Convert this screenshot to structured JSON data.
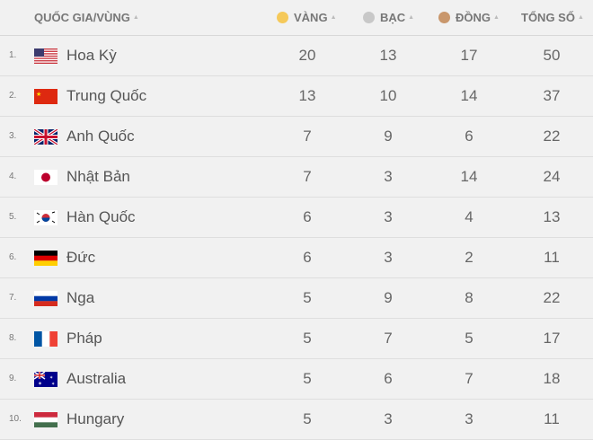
{
  "header": {
    "country": "QUỐC GIA/VÙNG",
    "gold": "VÀNG",
    "silver": "BẠC",
    "bronze": "ĐỒNG",
    "total": "TỔNG SỐ"
  },
  "colors": {
    "gold": "#f5c95a",
    "silver": "#c8c8c8",
    "bronze": "#c9976c"
  },
  "rows": [
    {
      "rank": "1.",
      "flag": "us-flag",
      "country": "Hoa Kỳ",
      "gold": "20",
      "silver": "13",
      "bronze": "17",
      "total": "50"
    },
    {
      "rank": "2.",
      "flag": "cn-flag",
      "country": "Trung Quốc",
      "gold": "13",
      "silver": "10",
      "bronze": "14",
      "total": "37"
    },
    {
      "rank": "3.",
      "flag": "gb-flag",
      "country": "Anh Quốc",
      "gold": "7",
      "silver": "9",
      "bronze": "6",
      "total": "22"
    },
    {
      "rank": "4.",
      "flag": "jp-flag",
      "country": "Nhật Bản",
      "gold": "7",
      "silver": "3",
      "bronze": "14",
      "total": "24"
    },
    {
      "rank": "5.",
      "flag": "kr-flag",
      "country": "Hàn Quốc",
      "gold": "6",
      "silver": "3",
      "bronze": "4",
      "total": "13"
    },
    {
      "rank": "6.",
      "flag": "de-flag",
      "country": "Đức",
      "gold": "6",
      "silver": "3",
      "bronze": "2",
      "total": "11"
    },
    {
      "rank": "7.",
      "flag": "ru-flag",
      "country": "Nga",
      "gold": "5",
      "silver": "9",
      "bronze": "8",
      "total": "22"
    },
    {
      "rank": "8.",
      "flag": "fr-flag",
      "country": "Pháp",
      "gold": "5",
      "silver": "7",
      "bronze": "5",
      "total": "17"
    },
    {
      "rank": "9.",
      "flag": "au-flag",
      "country": "Australia",
      "gold": "5",
      "silver": "6",
      "bronze": "7",
      "total": "18"
    },
    {
      "rank": "10.",
      "flag": "hu-flag",
      "country": "Hungary",
      "gold": "5",
      "silver": "3",
      "bronze": "3",
      "total": "11"
    }
  ]
}
